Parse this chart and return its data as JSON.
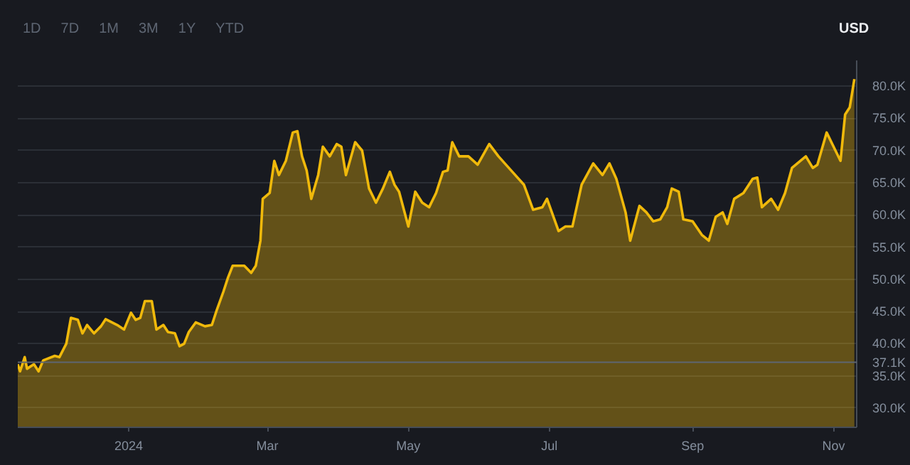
{
  "chart_data": {
    "type": "area",
    "ylabel": "USD",
    "annotations": [
      "1D",
      "7D",
      "1M",
      "3M",
      "1Y",
      "YTD"
    ],
    "x": [
      "2023-11-14",
      "2023-11-15",
      "2023-11-17",
      "2023-11-18",
      "2023-11-21",
      "2023-11-23",
      "2023-11-25",
      "2023-11-30",
      "2023-12-02",
      "2023-12-05",
      "2023-12-07",
      "2023-12-10",
      "2023-12-12",
      "2023-12-14",
      "2023-12-17",
      "2023-12-20",
      "2023-12-22",
      "2023-12-27",
      "2023-12-30",
      "2024-01-02",
      "2024-01-04",
      "2024-01-06",
      "2024-01-08",
      "2024-01-11",
      "2024-01-13",
      "2024-01-16",
      "2024-01-18",
      "2024-01-21",
      "2024-01-23",
      "2024-01-25",
      "2024-01-27",
      "2024-01-30",
      "2024-02-03",
      "2024-02-06",
      "2024-02-08",
      "2024-02-11",
      "2024-02-13",
      "2024-02-15",
      "2024-02-20",
      "2024-02-23",
      "2024-02-25",
      "2024-02-27",
      "2024-02-28",
      "2024-03-02",
      "2024-03-04",
      "2024-03-06",
      "2024-03-09",
      "2024-03-12",
      "2024-03-14",
      "2024-03-16",
      "2024-03-18",
      "2024-03-20",
      "2024-03-23",
      "2024-03-25",
      "2024-03-28",
      "2024-03-31",
      "2024-04-02",
      "2024-04-04",
      "2024-04-08",
      "2024-04-11",
      "2024-04-14",
      "2024-04-17",
      "2024-04-20",
      "2024-04-23",
      "2024-04-25",
      "2024-04-27",
      "2024-05-01",
      "2024-05-04",
      "2024-05-07",
      "2024-05-10",
      "2024-05-13",
      "2024-05-16",
      "2024-05-18",
      "2024-05-20",
      "2024-05-23",
      "2024-05-26",
      "2024-05-27",
      "2024-05-31",
      "2024-06-05",
      "2024-06-09",
      "2024-06-15",
      "2024-06-20",
      "2024-06-24",
      "2024-06-28",
      "2024-06-30",
      "2024-07-05",
      "2024-07-08",
      "2024-07-11",
      "2024-07-15",
      "2024-07-20",
      "2024-07-24",
      "2024-07-27",
      "2024-07-30",
      "2024-08-03",
      "2024-08-05",
      "2024-08-09",
      "2024-08-12",
      "2024-08-15",
      "2024-08-18",
      "2024-08-21",
      "2024-08-23",
      "2024-08-26",
      "2024-08-28",
      "2024-09-01",
      "2024-09-05",
      "2024-09-08",
      "2024-09-11",
      "2024-09-14",
      "2024-09-16",
      "2024-09-19",
      "2024-09-23",
      "2024-09-27",
      "2024-09-29",
      "2024-10-01",
      "2024-10-05",
      "2024-10-08",
      "2024-10-11",
      "2024-10-14",
      "2024-10-20",
      "2024-10-23",
      "2024-10-25",
      "2024-10-29",
      "2024-11-01",
      "2024-11-04",
      "2024-11-06",
      "2024-11-08",
      "2024-11-10"
    ],
    "series": [
      {
        "color": "#f0b90b",
        "values": [
          36800,
          35700,
          37900,
          36100,
          36800,
          35700,
          37400,
          38100,
          37900,
          40000,
          44000,
          43700,
          41600,
          42900,
          41600,
          42700,
          43800,
          42900,
          42200,
          44800,
          43700,
          44000,
          46600,
          46600,
          42200,
          42900,
          41800,
          41600,
          39600,
          40000,
          41800,
          43300,
          42700,
          42900,
          45100,
          48100,
          50300,
          52100,
          52100,
          51000,
          52100,
          56000,
          62500,
          63400,
          68400,
          66200,
          68400,
          72800,
          73000,
          69100,
          66900,
          62500,
          66200,
          70600,
          69100,
          71000,
          70600,
          66200,
          71300,
          70000,
          64100,
          61900,
          64100,
          66700,
          64700,
          63600,
          58200,
          63600,
          61900,
          61200,
          63400,
          66700,
          66900,
          71300,
          69100,
          69100,
          69100,
          67800,
          71000,
          69100,
          66700,
          64700,
          60800,
          61200,
          62500,
          57500,
          58200,
          58200,
          64700,
          68000,
          66200,
          68000,
          65600,
          60400,
          56000,
          61400,
          60400,
          59000,
          59300,
          61200,
          64100,
          63600,
          59300,
          59000,
          56900,
          56000,
          59700,
          60400,
          58600,
          62500,
          63400,
          65600,
          65800,
          61200,
          62500,
          60800,
          63400,
          67300,
          69100,
          67300,
          67800,
          72800,
          70600,
          68400,
          75600,
          76700,
          81100
        ]
      }
    ],
    "xlim": [
      "2023-11-14",
      "2024-11-11"
    ],
    "xticks": [
      {
        "value": "2024-01-01",
        "label": "2024"
      },
      {
        "value": "2024-03-01",
        "label": "Mar"
      },
      {
        "value": "2024-05-01",
        "label": "May"
      },
      {
        "value": "2024-07-01",
        "label": "Jul"
      },
      {
        "value": "2024-09-01",
        "label": "Sep"
      },
      {
        "value": "2024-11-01",
        "label": "Nov"
      }
    ],
    "ylim": [
      27000,
      84000
    ],
    "yticks": [
      {
        "value": 30000,
        "label": "30.0K"
      },
      {
        "value": 35000,
        "label": "35.0K"
      },
      {
        "value": 40000,
        "label": "40.0K"
      },
      {
        "value": 45000,
        "label": "45.0K"
      },
      {
        "value": 50000,
        "label": "50.0K"
      },
      {
        "value": 55000,
        "label": "55.0K"
      },
      {
        "value": 60000,
        "label": "60.0K"
      },
      {
        "value": 65000,
        "label": "65.0K"
      },
      {
        "value": 70000,
        "label": "70.0K"
      },
      {
        "value": 75000,
        "label": "75.0K"
      },
      {
        "value": 80000,
        "label": "80.0K"
      }
    ],
    "ref_lines": [
      {
        "axis": "y",
        "value": 37100,
        "label": "37.1K",
        "color": "#5e6673"
      }
    ],
    "grid": "y",
    "marker": "none",
    "line_style": "solid"
  }
}
